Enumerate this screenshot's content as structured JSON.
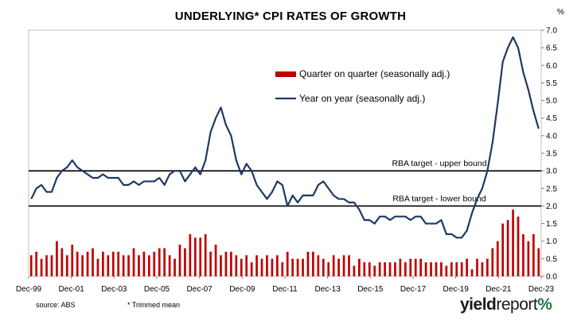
{
  "chart_data": {
    "type": "bar",
    "title": "UNDERLYING* CPI RATES OF GROWTH",
    "y_unit": "%",
    "ylim": [
      0,
      7
    ],
    "y_ticks": [
      "0.0",
      "0.5",
      "1.0",
      "1.5",
      "2.0",
      "2.5",
      "3.0",
      "3.5",
      "4.0",
      "4.5",
      "5.0",
      "5.5",
      "6.0",
      "6.5",
      "7.0"
    ],
    "x_tick_labels": [
      "Dec-99",
      "Dec-01",
      "Dec-03",
      "Dec-05",
      "Dec-07",
      "Dec-09",
      "Dec-11",
      "Dec-13",
      "Dec-15",
      "Dec-17",
      "Dec-19",
      "Dec-21",
      "Dec-23"
    ],
    "x_range": [
      "Dec-99",
      "Dec-23"
    ],
    "grid": false,
    "legend_position": "upper-right",
    "series": [
      {
        "name": "Quarter on quarter (seasonally adj.)",
        "kind": "bar",
        "color": "#c00000",
        "values": [
          0.6,
          0.7,
          0.5,
          0.6,
          0.6,
          1.0,
          0.8,
          0.6,
          0.9,
          0.7,
          0.6,
          0.7,
          0.8,
          0.5,
          0.7,
          0.6,
          0.7,
          0.7,
          0.6,
          0.6,
          0.8,
          0.6,
          0.7,
          0.6,
          0.7,
          0.8,
          0.8,
          0.6,
          0.5,
          0.9,
          0.8,
          1.2,
          1.1,
          1.1,
          1.2,
          0.7,
          0.9,
          0.6,
          0.7,
          0.7,
          0.6,
          0.5,
          0.6,
          0.4,
          0.6,
          0.5,
          0.6,
          0.5,
          0.6,
          0.4,
          0.7,
          0.5,
          0.5,
          0.5,
          0.7,
          0.7,
          0.6,
          0.5,
          0.4,
          0.6,
          0.5,
          0.6,
          0.6,
          0.3,
          0.5,
          0.4,
          0.4,
          0.3,
          0.4,
          0.4,
          0.4,
          0.4,
          0.5,
          0.4,
          0.5,
          0.5,
          0.5,
          0.4,
          0.4,
          0.4,
          0.4,
          0.3,
          0.4,
          0.4,
          0.4,
          0.5,
          0.2,
          0.5,
          0.4,
          0.5,
          0.8,
          1.0,
          1.5,
          1.6,
          1.9,
          1.7,
          1.2,
          1.0,
          1.2,
          0.8
        ]
      },
      {
        "name": "Year on year (seasonally adj.)",
        "kind": "line",
        "color": "#1f3864",
        "values": [
          2.2,
          2.5,
          2.6,
          2.4,
          2.4,
          2.8,
          3.0,
          3.1,
          3.3,
          3.1,
          3.0,
          2.9,
          2.8,
          2.8,
          2.9,
          2.8,
          2.8,
          2.8,
          2.6,
          2.6,
          2.7,
          2.6,
          2.7,
          2.7,
          2.7,
          2.8,
          2.6,
          2.9,
          3.0,
          3.0,
          2.7,
          2.9,
          3.1,
          2.9,
          3.3,
          4.1,
          4.5,
          4.8,
          4.3,
          4.0,
          3.3,
          2.9,
          3.2,
          3.0,
          2.6,
          2.4,
          2.2,
          2.4,
          2.7,
          2.6,
          2.0,
          2.3,
          2.1,
          2.3,
          2.3,
          2.3,
          2.6,
          2.7,
          2.5,
          2.3,
          2.2,
          2.2,
          2.1,
          2.1,
          1.9,
          1.6,
          1.6,
          1.5,
          1.7,
          1.7,
          1.6,
          1.7,
          1.7,
          1.7,
          1.6,
          1.7,
          1.7,
          1.5,
          1.5,
          1.5,
          1.6,
          1.2,
          1.2,
          1.1,
          1.1,
          1.3,
          1.8,
          2.2,
          2.5,
          3.0,
          3.8,
          4.9,
          6.1,
          6.5,
          6.8,
          6.5,
          5.8,
          5.3,
          4.7,
          4.2
        ]
      }
    ],
    "reference_lines": [
      {
        "name": "RBA target - upper bound",
        "value": 3.0,
        "color": "#000000"
      },
      {
        "name": "RBA target - lower bound",
        "value": 2.0,
        "color": "#000000"
      }
    ]
  },
  "footer": {
    "source": "source: ABS",
    "footnote": "* Trimmed mean",
    "brand_part1": "yield",
    "brand_part2": "report",
    "brand_part3": "%"
  }
}
